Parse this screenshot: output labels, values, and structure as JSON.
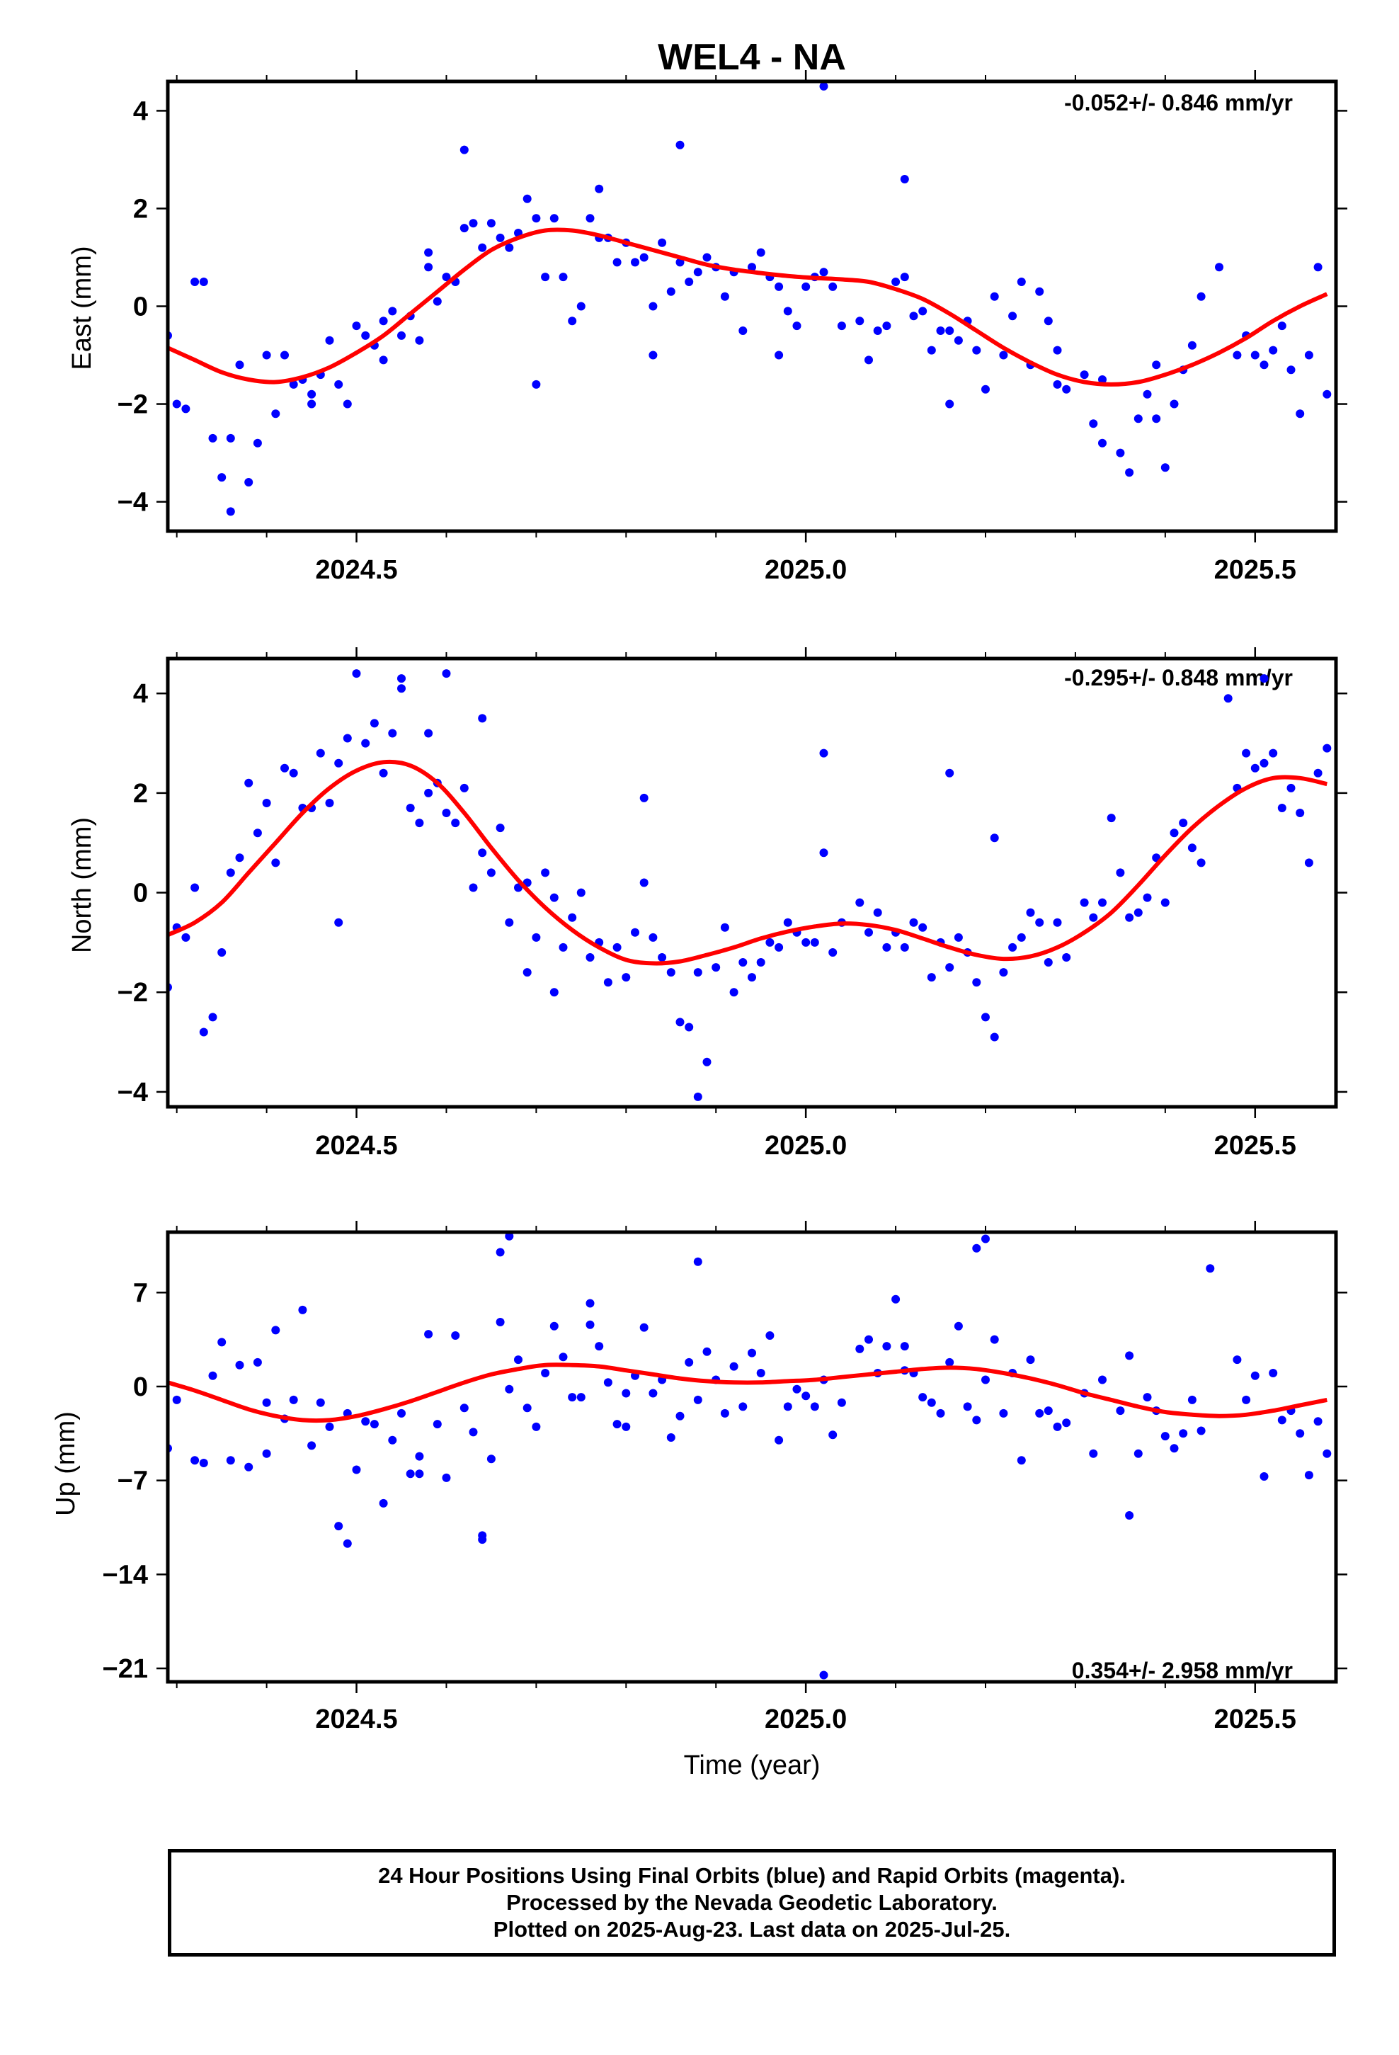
{
  "title": "WEL4 - NA",
  "colors": {
    "data": "#0000ff",
    "fit": "#ff0000",
    "frame": "#000000"
  },
  "xlabel": "Time (year)",
  "footer": {
    "line1": "24 Hour Positions Using Final Orbits (blue) and Rapid Orbits (magenta).",
    "line2": "Processed by the Nevada Geodetic Laboratory.",
    "line3": "Plotted on 2025-Aug-23. Last data on 2025-Jul-25."
  },
  "chart_data": [
    {
      "type": "scatter",
      "ylabel": "East (mm)",
      "rate_label": "-0.052+/- 0.846 mm/yr",
      "rate_position": "top-right",
      "xlim": [
        2024.29,
        2025.59
      ],
      "ylim": [
        -4.6,
        4.6
      ],
      "yticks": [
        -4,
        -2,
        0,
        2,
        4
      ],
      "xticks": [
        2024.5,
        2025.0,
        2025.5
      ],
      "x": [
        2024.29,
        2024.3,
        2024.32,
        2024.34,
        2024.35,
        2024.36,
        2024.37,
        2024.38,
        2024.39,
        2024.4,
        2024.41,
        2024.42,
        2024.43,
        2024.44,
        2024.45,
        2024.46,
        2024.47,
        2024.48,
        2024.49,
        2024.5,
        2024.51,
        2024.52,
        2024.53,
        2024.54,
        2024.55,
        2024.56,
        2024.57,
        2024.58,
        2024.59,
        2024.6,
        2024.61,
        2024.62,
        2024.63,
        2024.64,
        2024.65,
        2024.66,
        2024.67,
        2024.68,
        2024.69,
        2024.7,
        2024.71,
        2024.72,
        2024.73,
        2024.74,
        2024.75,
        2024.76,
        2024.77,
        2024.78,
        2024.79,
        2024.8,
        2024.81,
        2024.82,
        2024.83,
        2024.84,
        2024.85,
        2024.86,
        2024.87,
        2024.88,
        2024.89,
        2024.9,
        2024.91,
        2024.92,
        2024.93,
        2024.94,
        2024.95,
        2024.96,
        2024.97,
        2024.98,
        2024.99,
        2025.0,
        2025.01,
        2025.02,
        2025.03,
        2025.04,
        2025.06,
        2025.07,
        2025.08,
        2025.09,
        2025.1,
        2025.11,
        2025.12,
        2025.13,
        2025.14,
        2025.15,
        2025.16,
        2025.17,
        2025.18,
        2025.19,
        2025.2,
        2025.21,
        2025.22,
        2025.23,
        2025.24,
        2025.25,
        2025.26,
        2025.27,
        2025.28,
        2025.29,
        2025.31,
        2025.32,
        2025.33,
        2025.35,
        2025.36,
        2025.37,
        2025.38,
        2025.39,
        2025.4,
        2025.41,
        2025.42,
        2025.43,
        2025.44,
        2025.48,
        2025.49,
        2025.5,
        2025.51,
        2025.52,
        2025.53,
        2025.54,
        2025.55,
        2025.56,
        2025.57,
        2025.58,
        2025.33,
        2024.36,
        2024.31,
        2024.45,
        2024.62,
        2024.77,
        2024.86,
        2025.02,
        2025.11,
        2025.39,
        2024.33,
        2024.53,
        2024.58,
        2024.7,
        2024.83,
        2024.97,
        2025.16,
        2025.28,
        2025.46
      ],
      "y": [
        -0.6,
        -2.0,
        0.5,
        -2.7,
        -3.5,
        -2.7,
        -1.2,
        -3.6,
        -2.8,
        -1.0,
        -2.2,
        -1.0,
        -1.6,
        -1.5,
        -1.8,
        -1.4,
        -0.7,
        -1.6,
        -2.0,
        -0.4,
        -0.6,
        -0.8,
        -0.3,
        -0.1,
        -0.6,
        -0.2,
        -0.7,
        1.1,
        0.1,
        0.6,
        0.5,
        1.6,
        1.7,
        1.2,
        1.7,
        1.4,
        1.2,
        1.5,
        2.2,
        1.8,
        0.6,
        1.8,
        0.6,
        -0.3,
        0.0,
        1.8,
        1.4,
        1.4,
        0.9,
        1.3,
        0.9,
        1.0,
        0.0,
        1.3,
        0.3,
        0.9,
        0.5,
        0.7,
        1.0,
        0.8,
        0.2,
        0.7,
        -0.5,
        0.8,
        1.1,
        0.6,
        0.4,
        -0.1,
        -0.4,
        0.4,
        0.6,
        0.7,
        0.4,
        -0.4,
        -0.3,
        -1.1,
        -0.5,
        -0.4,
        0.5,
        0.6,
        -0.2,
        -0.1,
        -0.9,
        -0.5,
        -0.5,
        -0.7,
        -0.3,
        -0.9,
        -1.7,
        0.2,
        -1.0,
        -0.2,
        0.5,
        -1.2,
        0.3,
        -0.3,
        -0.9,
        -1.7,
        -1.4,
        -2.4,
        -2.8,
        -3.0,
        -3.4,
        -2.3,
        -1.8,
        -1.2,
        -3.3,
        -2.0,
        -1.3,
        -0.8,
        0.2,
        -1.0,
        -0.6,
        -1.0,
        -1.2,
        -0.9,
        -0.4,
        -1.3,
        -2.2,
        -1.0,
        0.8,
        -1.8,
        -1.5,
        -4.2,
        -2.1,
        -2.0,
        3.2,
        2.4,
        3.3,
        4.5,
        2.6,
        -2.3,
        0.5,
        -1.1,
        0.8,
        -1.6,
        -1.0,
        -1.0,
        -2.0,
        -1.6,
        0.8
      ],
      "fit": {
        "x": [
          2024.29,
          2024.32,
          2024.35,
          2024.38,
          2024.41,
          2024.44,
          2024.47,
          2024.5,
          2024.53,
          2024.56,
          2024.59,
          2024.62,
          2024.65,
          2024.68,
          2024.71,
          2024.74,
          2024.77,
          2024.8,
          2024.83,
          2024.86,
          2024.89,
          2024.92,
          2024.95,
          2024.98,
          2025.01,
          2025.04,
          2025.07,
          2025.1,
          2025.13,
          2025.16,
          2025.19,
          2025.22,
          2025.25,
          2025.28,
          2025.31,
          2025.34,
          2025.37,
          2025.4,
          2025.43,
          2025.46,
          2025.49,
          2025.52,
          2025.55,
          2025.58
        ],
        "y": [
          -0.85,
          -1.1,
          -1.35,
          -1.5,
          -1.55,
          -1.45,
          -1.25,
          -0.95,
          -0.6,
          -0.15,
          0.3,
          0.75,
          1.15,
          1.4,
          1.55,
          1.55,
          1.45,
          1.3,
          1.15,
          1.0,
          0.85,
          0.75,
          0.68,
          0.62,
          0.58,
          0.55,
          0.5,
          0.35,
          0.15,
          -0.15,
          -0.5,
          -0.85,
          -1.15,
          -1.4,
          -1.55,
          -1.6,
          -1.55,
          -1.4,
          -1.2,
          -0.95,
          -0.65,
          -0.3,
          0.0,
          0.25
        ]
      }
    },
    {
      "type": "scatter",
      "ylabel": "North (mm)",
      "rate_label": "-0.295+/- 0.848 mm/yr",
      "rate_position": "top-right",
      "xlim": [
        2024.29,
        2025.59
      ],
      "ylim": [
        -4.3,
        4.7
      ],
      "yticks": [
        -4,
        -2,
        0,
        2,
        4
      ],
      "xticks": [
        2024.5,
        2025.0,
        2025.5
      ],
      "x": [
        2024.29,
        2024.3,
        2024.32,
        2024.34,
        2024.35,
        2024.36,
        2024.37,
        2024.38,
        2024.39,
        2024.4,
        2024.41,
        2024.42,
        2024.43,
        2024.44,
        2024.45,
        2024.46,
        2024.47,
        2024.48,
        2024.49,
        2024.5,
        2024.51,
        2024.52,
        2024.53,
        2024.54,
        2024.55,
        2024.56,
        2024.57,
        2024.58,
        2024.59,
        2024.6,
        2024.61,
        2024.62,
        2024.63,
        2024.64,
        2024.65,
        2024.66,
        2024.67,
        2024.68,
        2024.69,
        2024.7,
        2024.71,
        2024.72,
        2024.73,
        2024.74,
        2024.75,
        2024.76,
        2024.77,
        2024.78,
        2024.79,
        2024.8,
        2024.81,
        2024.82,
        2024.83,
        2024.84,
        2024.85,
        2024.86,
        2024.87,
        2024.88,
        2024.89,
        2024.9,
        2024.91,
        2024.92,
        2024.93,
        2024.94,
        2024.95,
        2024.96,
        2024.97,
        2024.98,
        2024.99,
        2025.0,
        2025.01,
        2025.02,
        2025.03,
        2025.04,
        2025.06,
        2025.07,
        2025.08,
        2025.09,
        2025.1,
        2025.11,
        2025.12,
        2025.13,
        2025.14,
        2025.15,
        2025.16,
        2025.17,
        2025.18,
        2025.19,
        2025.2,
        2025.21,
        2025.22,
        2025.23,
        2025.24,
        2025.25,
        2025.26,
        2025.27,
        2025.28,
        2025.29,
        2025.31,
        2025.32,
        2025.33,
        2025.35,
        2025.36,
        2025.37,
        2025.38,
        2025.39,
        2025.4,
        2025.41,
        2025.42,
        2025.43,
        2025.44,
        2025.48,
        2025.49,
        2025.5,
        2025.51,
        2025.52,
        2025.53,
        2025.54,
        2025.55,
        2025.56,
        2025.57,
        2025.58,
        2024.33,
        2024.55,
        2024.6,
        2024.64,
        2024.72,
        2024.82,
        2024.88,
        2025.02,
        2025.16,
        2025.21,
        2025.34,
        2025.47,
        2025.51,
        2024.31,
        2024.48,
        2024.58,
        2024.69
      ],
      "y": [
        -1.9,
        -0.7,
        0.1,
        -2.5,
        -1.2,
        0.4,
        0.7,
        2.2,
        1.2,
        1.8,
        0.6,
        2.5,
        2.4,
        1.7,
        1.7,
        2.8,
        1.8,
        2.6,
        3.1,
        4.4,
        3.0,
        3.4,
        2.4,
        3.2,
        4.3,
        1.7,
        1.4,
        3.2,
        2.2,
        1.6,
        1.4,
        2.1,
        0.1,
        0.8,
        0.4,
        1.3,
        -0.6,
        0.1,
        0.2,
        -0.9,
        0.4,
        -0.1,
        -1.1,
        -0.5,
        0.0,
        -1.3,
        -1.0,
        -1.8,
        -1.1,
        -1.7,
        -0.8,
        0.2,
        -0.9,
        -1.3,
        -1.6,
        -2.6,
        -2.7,
        -1.6,
        -3.4,
        -1.5,
        -0.7,
        -2.0,
        -1.4,
        -1.7,
        -1.4,
        -1.0,
        -1.1,
        -0.6,
        -0.8,
        -1.0,
        -1.0,
        0.8,
        -1.2,
        -0.6,
        -0.2,
        -0.8,
        -0.4,
        -1.1,
        -0.8,
        -1.1,
        -0.6,
        -0.7,
        -1.7,
        -1.0,
        -1.5,
        -0.9,
        -1.2,
        -1.8,
        -2.5,
        -2.9,
        -1.6,
        -1.1,
        -0.9,
        -0.4,
        -0.6,
        -1.4,
        -0.6,
        -1.3,
        -0.2,
        -0.5,
        -0.2,
        0.4,
        -0.5,
        -0.4,
        -0.1,
        0.7,
        -0.2,
        1.2,
        1.4,
        0.9,
        0.6,
        2.1,
        2.8,
        2.5,
        2.6,
        2.8,
        1.7,
        2.1,
        1.6,
        0.6,
        2.4,
        2.9,
        -2.8,
        4.1,
        4.4,
        3.5,
        -2.0,
        1.9,
        -4.1,
        2.8,
        2.4,
        1.1,
        1.5,
        3.9,
        4.3,
        -0.9,
        -0.6,
        2.0,
        -1.6
      ],
      "fit": {
        "x": [
          2024.29,
          2024.32,
          2024.35,
          2024.38,
          2024.41,
          2024.44,
          2024.47,
          2024.5,
          2024.53,
          2024.56,
          2024.59,
          2024.62,
          2024.65,
          2024.68,
          2024.71,
          2024.74,
          2024.77,
          2024.8,
          2024.83,
          2024.86,
          2024.89,
          2024.92,
          2024.95,
          2024.98,
          2025.01,
          2025.04,
          2025.07,
          2025.1,
          2025.13,
          2025.16,
          2025.19,
          2025.22,
          2025.25,
          2025.28,
          2025.31,
          2025.34,
          2025.37,
          2025.4,
          2025.43,
          2025.46,
          2025.49,
          2025.52,
          2025.55,
          2025.58
        ],
        "y": [
          -0.85,
          -0.6,
          -0.2,
          0.4,
          1.0,
          1.6,
          2.1,
          2.45,
          2.62,
          2.55,
          2.2,
          1.6,
          0.9,
          0.25,
          -0.3,
          -0.75,
          -1.1,
          -1.35,
          -1.42,
          -1.38,
          -1.25,
          -1.1,
          -0.92,
          -0.78,
          -0.68,
          -0.62,
          -0.65,
          -0.75,
          -0.92,
          -1.1,
          -1.25,
          -1.33,
          -1.28,
          -1.1,
          -0.8,
          -0.4,
          0.15,
          0.75,
          1.3,
          1.75,
          2.1,
          2.3,
          2.3,
          2.18
        ]
      }
    },
    {
      "type": "scatter",
      "ylabel": "Up (mm)",
      "rate_label": "0.354+/- 2.958 mm/yr",
      "rate_position": "bottom-right",
      "xlim": [
        2024.29,
        2025.59
      ],
      "ylim": [
        -22.0,
        11.5
      ],
      "yticks": [
        -21,
        -14,
        -7,
        0,
        7
      ],
      "xticks": [
        2024.5,
        2025.0,
        2025.5
      ],
      "x": [
        2024.29,
        2024.3,
        2024.32,
        2024.34,
        2024.35,
        2024.36,
        2024.37,
        2024.38,
        2024.39,
        2024.4,
        2024.41,
        2024.42,
        2024.43,
        2024.44,
        2024.45,
        2024.46,
        2024.47,
        2024.48,
        2024.49,
        2024.5,
        2024.51,
        2024.52,
        2024.53,
        2024.54,
        2024.55,
        2024.56,
        2024.57,
        2024.58,
        2024.59,
        2024.6,
        2024.61,
        2024.62,
        2024.63,
        2024.64,
        2024.65,
        2024.66,
        2024.67,
        2024.68,
        2024.69,
        2024.7,
        2024.71,
        2024.72,
        2024.73,
        2024.74,
        2024.75,
        2024.76,
        2024.77,
        2024.78,
        2024.79,
        2024.8,
        2024.81,
        2024.82,
        2024.83,
        2024.84,
        2024.85,
        2024.86,
        2024.87,
        2024.88,
        2024.89,
        2024.9,
        2024.91,
        2024.92,
        2024.93,
        2024.94,
        2024.95,
        2024.96,
        2024.97,
        2024.98,
        2024.99,
        2025.0,
        2025.01,
        2025.02,
        2025.03,
        2025.04,
        2025.06,
        2025.07,
        2025.08,
        2025.09,
        2025.1,
        2025.11,
        2025.12,
        2025.13,
        2025.14,
        2025.15,
        2025.16,
        2025.17,
        2025.18,
        2025.19,
        2025.2,
        2025.21,
        2025.22,
        2025.23,
        2025.24,
        2025.25,
        2025.26,
        2025.27,
        2025.28,
        2025.29,
        2025.31,
        2025.32,
        2025.33,
        2025.35,
        2025.36,
        2025.37,
        2025.38,
        2025.39,
        2025.4,
        2025.41,
        2025.42,
        2025.43,
        2025.44,
        2025.48,
        2025.49,
        2025.5,
        2025.51,
        2025.52,
        2025.53,
        2025.54,
        2025.55,
        2025.56,
        2025.57,
        2025.58,
        2024.66,
        2024.67,
        2024.76,
        2024.88,
        2025.02,
        2025.19,
        2025.2,
        2025.45,
        2024.49,
        2024.64,
        2024.33,
        2024.4,
        2025.36,
        2025.11,
        2024.57,
        2024.8
      ],
      "y": [
        -4.6,
        -1.0,
        -5.5,
        0.8,
        3.3,
        -5.5,
        1.6,
        -6.0,
        1.8,
        -5.0,
        4.2,
        -2.4,
        -1.0,
        5.7,
        -4.4,
        -1.2,
        -3.0,
        -10.4,
        -2.0,
        -6.2,
        -2.6,
        -2.8,
        -8.7,
        -4.0,
        -2.0,
        -6.5,
        -5.2,
        3.9,
        -2.8,
        -6.8,
        3.8,
        -1.6,
        -3.4,
        -11.1,
        -5.4,
        4.8,
        -0.2,
        2.0,
        -1.6,
        -3.0,
        1.0,
        4.5,
        2.2,
        -0.8,
        -0.8,
        6.2,
        3.0,
        0.3,
        -2.8,
        -0.5,
        0.8,
        4.4,
        -0.5,
        0.5,
        -3.8,
        -2.2,
        1.8,
        -1.0,
        2.6,
        0.5,
        -2.0,
        1.5,
        -1.5,
        2.5,
        1.0,
        3.8,
        -4.0,
        -1.5,
        -0.2,
        -0.7,
        -1.5,
        0.5,
        -3.6,
        -1.2,
        2.8,
        3.5,
        1.0,
        3.0,
        6.5,
        3.0,
        1.0,
        -0.8,
        -1.2,
        -2.0,
        1.8,
        4.5,
        -1.5,
        -2.5,
        0.5,
        3.5,
        -2.0,
        1.0,
        -5.5,
        2.0,
        -2.0,
        -1.8,
        -3.0,
        -2.7,
        -0.5,
        -5.0,
        0.5,
        -1.8,
        2.3,
        -5.0,
        -0.8,
        -1.8,
        -3.7,
        -4.6,
        -3.5,
        -1.0,
        -3.3,
        2.0,
        -1.0,
        0.8,
        -6.7,
        1.0,
        -2.5,
        -1.8,
        -3.5,
        -6.6,
        -2.6,
        -5.0,
        10.0,
        11.2,
        4.6,
        9.3,
        -21.5,
        10.3,
        11.0,
        8.8,
        -11.7,
        -11.4,
        -5.7,
        -1.2,
        -9.6,
        1.2,
        -6.5,
        -3.0
      ],
      "fit": {
        "x": [
          2024.29,
          2024.32,
          2024.35,
          2024.38,
          2024.41,
          2024.44,
          2024.47,
          2024.5,
          2024.53,
          2024.56,
          2024.59,
          2024.62,
          2024.65,
          2024.68,
          2024.71,
          2024.74,
          2024.77,
          2024.8,
          2024.83,
          2024.86,
          2024.89,
          2024.92,
          2024.95,
          2024.98,
          2025.01,
          2025.04,
          2025.07,
          2025.1,
          2025.13,
          2025.16,
          2025.19,
          2025.22,
          2025.25,
          2025.28,
          2025.31,
          2025.34,
          2025.37,
          2025.4,
          2025.43,
          2025.46,
          2025.49,
          2025.52,
          2025.55,
          2025.58
        ],
        "y": [
          0.3,
          -0.3,
          -1.0,
          -1.7,
          -2.2,
          -2.5,
          -2.5,
          -2.2,
          -1.7,
          -1.1,
          -0.4,
          0.3,
          0.9,
          1.3,
          1.6,
          1.6,
          1.5,
          1.2,
          0.9,
          0.6,
          0.4,
          0.3,
          0.3,
          0.4,
          0.5,
          0.7,
          0.9,
          1.1,
          1.3,
          1.4,
          1.3,
          1.0,
          0.6,
          0.1,
          -0.5,
          -1.0,
          -1.5,
          -1.9,
          -2.1,
          -2.2,
          -2.1,
          -1.8,
          -1.4,
          -1.0
        ]
      }
    }
  ]
}
